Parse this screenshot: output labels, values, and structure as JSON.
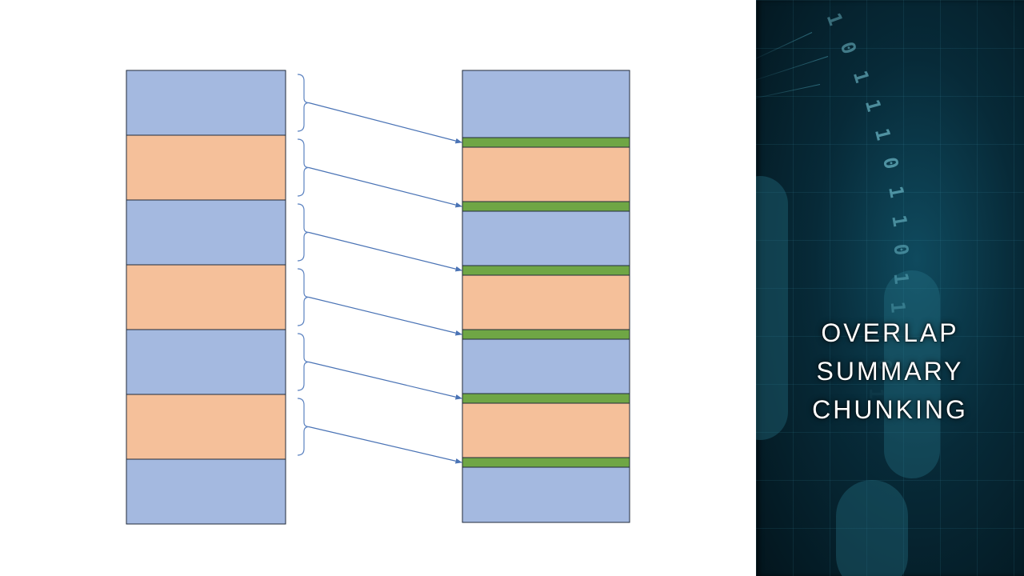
{
  "title": {
    "line1": "OVERLAP",
    "line2": "SUMMARY",
    "line3": "CHUNKING"
  },
  "source_chunks": [
    {
      "kind": "blue"
    },
    {
      "kind": "orange"
    },
    {
      "kind": "blue"
    },
    {
      "kind": "orange"
    },
    {
      "kind": "blue"
    },
    {
      "kind": "orange"
    },
    {
      "kind": "blue"
    }
  ],
  "target_chunks": [
    {
      "kind": "blue"
    },
    {
      "kind": "orange"
    },
    {
      "kind": "blue"
    },
    {
      "kind": "orange"
    },
    {
      "kind": "blue"
    },
    {
      "kind": "orange"
    },
    {
      "kind": "blue"
    }
  ],
  "summary_count": 6,
  "colors": {
    "blue": "#a4b9e0",
    "orange": "#f5c09a",
    "green": "#6fa645",
    "arrow": "#4a73b5",
    "brace": "#5b82c0",
    "outline": "#1f2a3a"
  }
}
